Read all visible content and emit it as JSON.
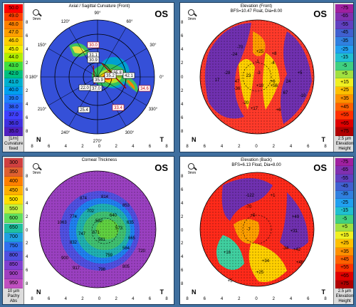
{
  "eye": "OS",
  "zoom_label": "9mm",
  "orientation": {
    "nasal": "N",
    "temporal": "T"
  },
  "axis_ticks": [
    "8",
    "6",
    "4",
    "2",
    "0",
    "2",
    "4",
    "6",
    "8"
  ],
  "scale_front_curv": {
    "items": [
      {
        "label": "50.0",
        "color": "#ff0000"
      },
      {
        "label": "49.0",
        "color": "#ff4000"
      },
      {
        "label": "48.0",
        "color": "#ff8000"
      },
      {
        "label": "47.0",
        "color": "#ffa000"
      },
      {
        "label": "46.0",
        "color": "#ffd000"
      },
      {
        "label": "45.0",
        "color": "#f0f000"
      },
      {
        "label": "44.0",
        "color": "#b0f000"
      },
      {
        "label": "43.0",
        "color": "#40e040"
      },
      {
        "label": "42.0",
        "color": "#00c080"
      },
      {
        "label": "41.0",
        "color": "#00b0d0"
      },
      {
        "label": "40.0",
        "color": "#00a0f0"
      },
      {
        "label": "39.0",
        "color": "#2080ff"
      },
      {
        "label": "38.0",
        "color": "#3060ff"
      },
      {
        "label": "37.0",
        "color": "#4040ff"
      },
      {
        "label": "36.0",
        "color": "#4030e0"
      },
      {
        "label": "35.0",
        "color": "#5020c0"
      }
    ],
    "footer": [
      "[1/m]",
      "Curvature",
      "fixed"
    ]
  },
  "panel1": {
    "title": "Axial / Sagittal Curvature (Front)",
    "angles": [
      "90°",
      "120°",
      "60°",
      "150°",
      "30°",
      "180°",
      "0°",
      "210°",
      "330°",
      "240°",
      "300°",
      "270°"
    ],
    "values": [
      "30.0",
      "31.1",
      "30.9",
      "35.8",
      "35.2",
      "22.0",
      "42.1",
      "37.0",
      "34.6",
      "35.9",
      "33.4",
      "25.4"
    ]
  },
  "scale_elevation_front": {
    "items": [
      {
        "label": "-75",
        "color": "#a020a0"
      },
      {
        "label": "-65",
        "color": "#8030b0"
      },
      {
        "label": "-55",
        "color": "#6040c0"
      },
      {
        "label": "-45",
        "color": "#4060d0"
      },
      {
        "label": "-35",
        "color": "#3080e0"
      },
      {
        "label": "-25",
        "color": "#20a0f0"
      },
      {
        "label": "-15",
        "color": "#20c0d0"
      },
      {
        "label": "-5",
        "color": "#40d080"
      },
      {
        "label": "+5",
        "color": "#a0e040"
      },
      {
        "label": "+15",
        "color": "#f0f020"
      },
      {
        "label": "+25",
        "color": "#ffc000"
      },
      {
        "label": "+35",
        "color": "#ff9000"
      },
      {
        "label": "+45",
        "color": "#ff6000"
      },
      {
        "label": "+55",
        "color": "#ff3000"
      },
      {
        "label": "+65",
        "color": "#e00000"
      },
      {
        "label": "+75",
        "color": "#b00000"
      }
    ],
    "footer": [
      "2.5 µm",
      "Elevation",
      "Height"
    ]
  },
  "panel2": {
    "title": "Elevation (Front)",
    "subtitle": "BFS=10.47 Float, Dia=8.00",
    "values": [
      "-70",
      "+25",
      "-24",
      "+8",
      "-1",
      "-4",
      "-3",
      "23",
      "+10",
      "+6",
      "-28",
      "47",
      "17",
      "-36",
      "+56",
      "24",
      "67",
      "+5",
      "-10",
      "-20",
      "+6",
      "+17"
    ]
  },
  "scale_pachy": {
    "items": [
      {
        "label": "300",
        "color": "#d04040"
      },
      {
        "label": "350",
        "color": "#e06030"
      },
      {
        "label": "400",
        "color": "#ff8000"
      },
      {
        "label": "450",
        "color": "#ffb000"
      },
      {
        "label": "500",
        "color": "#ffe000"
      },
      {
        "label": "550",
        "color": "#c0f040"
      },
      {
        "label": "600",
        "color": "#60e060"
      },
      {
        "label": "650",
        "color": "#20c0a0"
      },
      {
        "label": "700",
        "color": "#20a0e0"
      },
      {
        "label": "750",
        "color": "#3070f0"
      },
      {
        "label": "800",
        "color": "#5050e0"
      },
      {
        "label": "850",
        "color": "#8040d0"
      },
      {
        "label": "900",
        "color": "#a040c0"
      },
      {
        "label": "950",
        "color": "#c050c0"
      }
    ],
    "footer": [
      "10 µm",
      "Pachy",
      "Abs"
    ]
  },
  "panel3": {
    "title": "Corneal Thickness",
    "values": [
      "874",
      "814",
      "853",
      "1063",
      "774",
      "702",
      "640",
      "747",
      "582",
      "573",
      "635",
      "832",
      "671",
      "561",
      "665",
      "900",
      "759",
      "584",
      "720",
      "917",
      "798",
      "805"
    ]
  },
  "scale_elevation_back": {
    "items": [
      {
        "label": "-75",
        "color": "#a020a0"
      },
      {
        "label": "-65",
        "color": "#8030b0"
      },
      {
        "label": "-55",
        "color": "#6040c0"
      },
      {
        "label": "-45",
        "color": "#4060d0"
      },
      {
        "label": "-35",
        "color": "#3080e0"
      },
      {
        "label": "-25",
        "color": "#20a0f0"
      },
      {
        "label": "-15",
        "color": "#20c0d0"
      },
      {
        "label": "-5",
        "color": "#40d080"
      },
      {
        "label": "+5",
        "color": "#a0e040"
      },
      {
        "label": "+15",
        "color": "#f0f020"
      },
      {
        "label": "+25",
        "color": "#ffc000"
      },
      {
        "label": "+35",
        "color": "#ff9000"
      },
      {
        "label": "+45",
        "color": "#ff6000"
      },
      {
        "label": "+55",
        "color": "#ff3000"
      },
      {
        "label": "+65",
        "color": "#e00000"
      },
      {
        "label": "+75",
        "color": "#b00000"
      }
    ],
    "footer": [
      "2.5 µm",
      "Elevation",
      "Height"
    ]
  },
  "panel4": {
    "title": "Elevation (Back)",
    "subtitle": "BFS=6.13 Float, Dia=8.00",
    "values": [
      "-122",
      "+1",
      "-70",
      "+5",
      "+49",
      "+31",
      "-7",
      "-34",
      "+16",
      "+34",
      "+42",
      "+46",
      "+25",
      "+5"
    ]
  }
}
